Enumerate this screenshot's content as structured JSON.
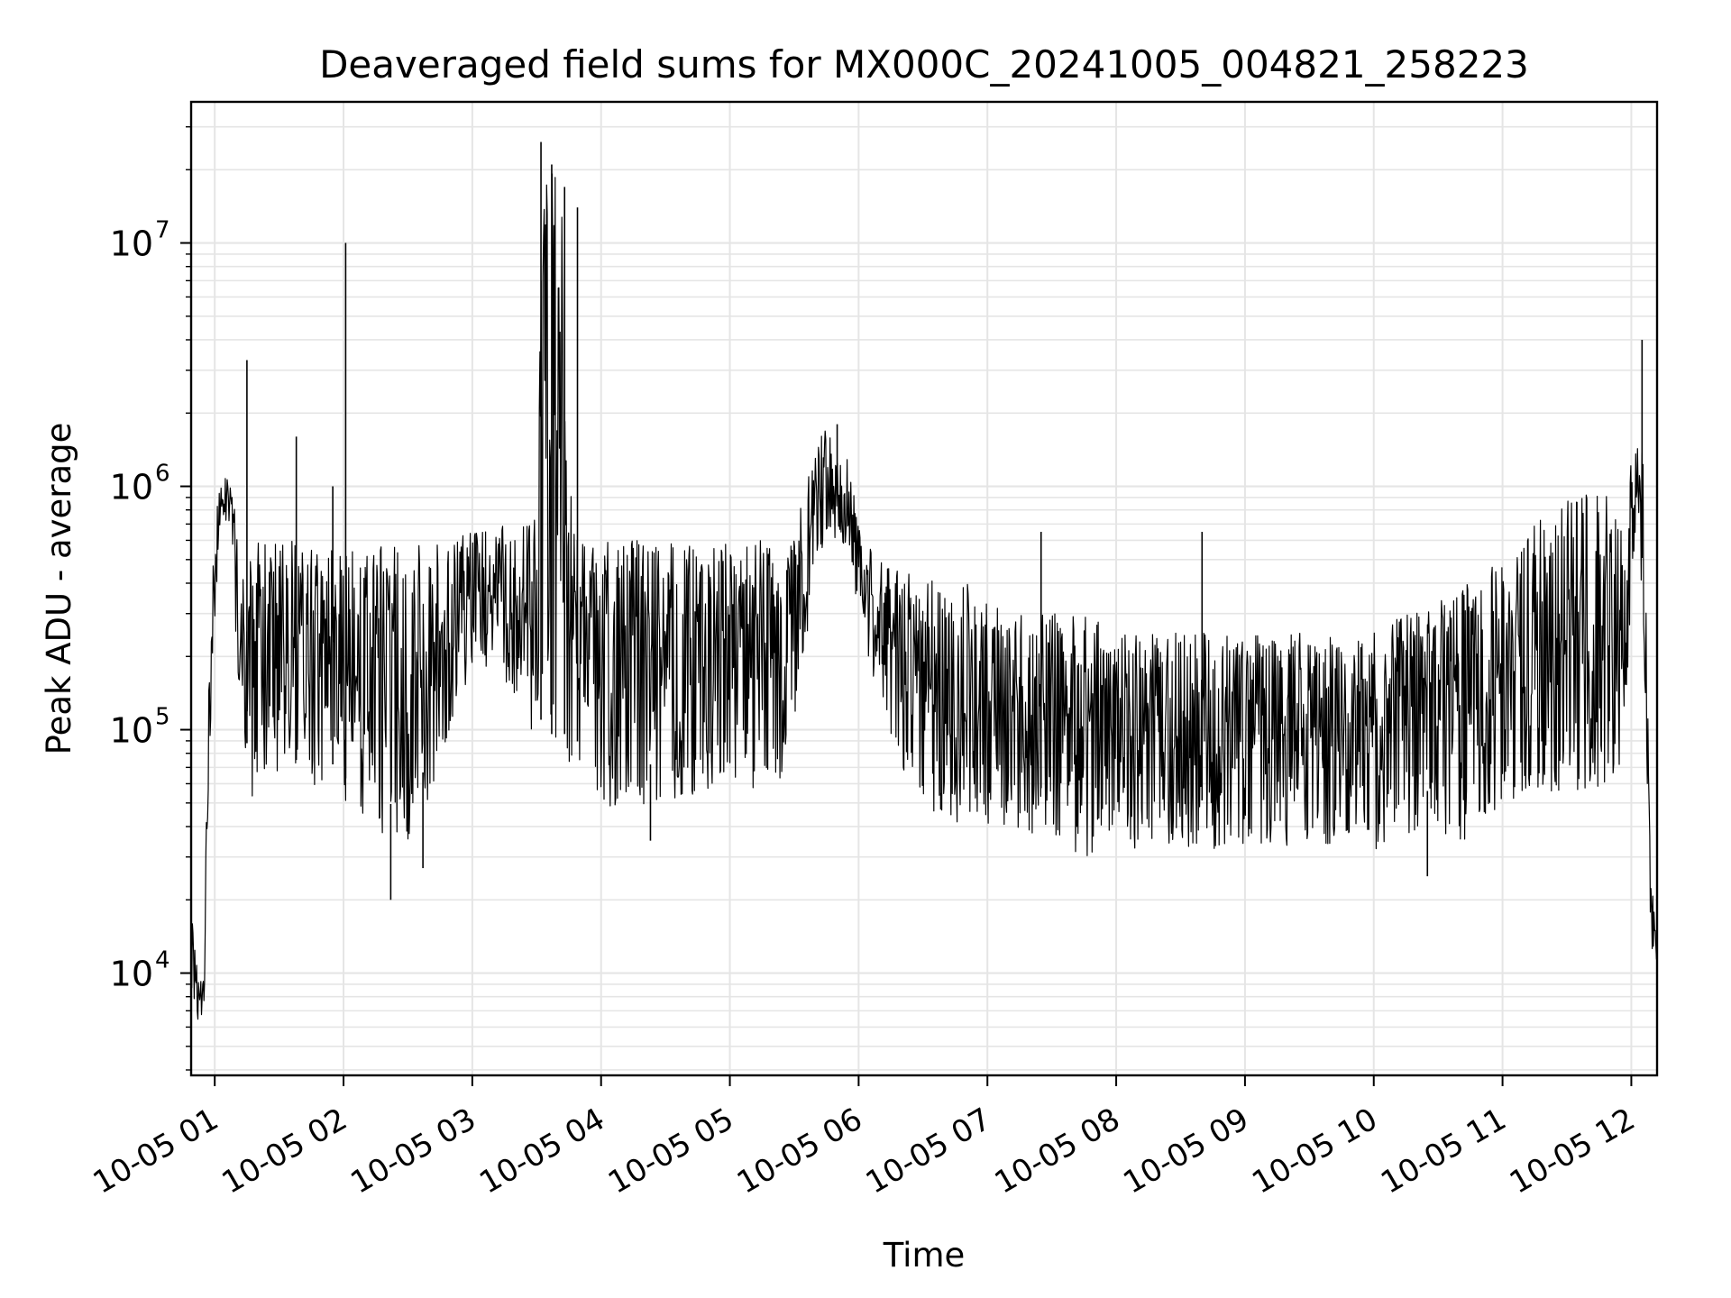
{
  "chart_data": {
    "type": "line",
    "title": "Deaveraged field sums for MX000C_20241005_004821_258223",
    "xlabel": "Time",
    "ylabel": "Peak ADU - average",
    "x_scale": "time",
    "y_scale": "log",
    "xlim": [
      "2024-10-05 00:49",
      "2024-10-05 12:12"
    ],
    "ylim": [
      3800,
      38000000
    ],
    "xtick_labels": [
      "10-05 01",
      "10-05 02",
      "10-05 03",
      "10-05 04",
      "10-05 05",
      "10-05 06",
      "10-05 07",
      "10-05 08",
      "10-05 09",
      "10-05 10",
      "10-05 11",
      "10-05 12"
    ],
    "ytick_labels": [
      {
        "base": "10",
        "exp": "4",
        "value": 10000
      },
      {
        "base": "10",
        "exp": "5",
        "value": 100000
      },
      {
        "base": "10",
        "exp": "6",
        "value": 1000000
      },
      {
        "base": "10",
        "exp": "7",
        "value": 10000000
      }
    ],
    "grid": true,
    "line_color": "#000000",
    "grid_color": "#e5e5e5",
    "series": [
      {
        "x": [
          "2024-10-05 00:49",
          "2024-10-05 00:51",
          "2024-10-05 00:53",
          "2024-10-05 00:55",
          "2024-10-05 00:57",
          "2024-10-05 00:59",
          "2024-10-05 01:02",
          "2024-10-05 01:05",
          "2024-10-05 01:08",
          "2024-10-05 01:10",
          "2024-10-05 01:13",
          "2024-10-05 01:15",
          "2024-10-05 01:20",
          "2024-10-05 01:25",
          "2024-10-05 01:30",
          "2024-10-05 01:35",
          "2024-10-05 01:40",
          "2024-10-05 01:45",
          "2024-10-05 01:50",
          "2024-10-05 01:55",
          "2024-10-05 02:00",
          "2024-10-05 02:10",
          "2024-10-05 02:20",
          "2024-10-05 02:30",
          "2024-10-05 02:40",
          "2024-10-05 02:50",
          "2024-10-05 03:00",
          "2024-10-05 03:10",
          "2024-10-05 03:20",
          "2024-10-05 03:30",
          "2024-10-05 03:33",
          "2024-10-05 03:36",
          "2024-10-05 03:39",
          "2024-10-05 03:42",
          "2024-10-05 03:45",
          "2024-10-05 03:50",
          "2024-10-05 04:00",
          "2024-10-05 04:15",
          "2024-10-05 04:30",
          "2024-10-05 04:45",
          "2024-10-05 05:00",
          "2024-10-05 05:15",
          "2024-10-05 05:30",
          "2024-10-05 05:35",
          "2024-10-05 05:40",
          "2024-10-05 05:45",
          "2024-10-05 05:50",
          "2024-10-05 05:55",
          "2024-10-05 06:00",
          "2024-10-05 06:10",
          "2024-10-05 06:20",
          "2024-10-05 06:30",
          "2024-10-05 06:40",
          "2024-10-05 06:50",
          "2024-10-05 07:00",
          "2024-10-05 07:15",
          "2024-10-05 07:30",
          "2024-10-05 07:45",
          "2024-10-05 08:00",
          "2024-10-05 08:15",
          "2024-10-05 08:30",
          "2024-10-05 08:45",
          "2024-10-05 09:00",
          "2024-10-05 09:15",
          "2024-10-05 09:30",
          "2024-10-05 09:45",
          "2024-10-05 10:00",
          "2024-10-05 10:15",
          "2024-10-05 10:30",
          "2024-10-05 10:45",
          "2024-10-05 11:00",
          "2024-10-05 11:15",
          "2024-10-05 11:30",
          "2024-10-05 11:45",
          "2024-10-05 11:55",
          "2024-10-05 12:00",
          "2024-10-05 12:03",
          "2024-10-05 12:06",
          "2024-10-05 12:09",
          "2024-10-05 12:12"
        ],
        "lower": [
          9000,
          6500,
          6000,
          7000,
          50000,
          150000,
          600000,
          700000,
          700000,
          200000,
          80000,
          55000,
          50000,
          50000,
          55000,
          50000,
          45000,
          50000,
          45000,
          45000,
          40000,
          35000,
          30000,
          35000,
          45000,
          100000,
          150000,
          200000,
          120000,
          90000,
          60000,
          60000,
          60000,
          60000,
          60000,
          55000,
          50000,
          45000,
          45000,
          50000,
          60000,
          55000,
          70000,
          200000,
          500000,
          600000,
          600000,
          500000,
          300000,
          120000,
          70000,
          50000,
          40000,
          40000,
          40000,
          38000,
          35000,
          30000,
          32000,
          32000,
          32000,
          32000,
          33000,
          33000,
          33000,
          33000,
          30000,
          35000,
          35000,
          35000,
          50000,
          55000,
          55000,
          55000,
          60000,
          300000,
          800000,
          200000,
          12000,
          10000
        ],
        "upper": [
          20000,
          12000,
          9000,
          10000,
          150000,
          500000,
          1000000,
          1100000,
          1000000,
          700000,
          500000,
          500000,
          600000,
          600000,
          600000,
          600000,
          600000,
          550000,
          550000,
          550000,
          550000,
          550000,
          600000,
          600000,
          600000,
          600000,
          650000,
          700000,
          700000,
          800000,
          25000000,
          20000000,
          20000000,
          15000000,
          1200000,
          700000,
          600000,
          600000,
          600000,
          600000,
          600000,
          600000,
          600000,
          1000000,
          1600000,
          1800000,
          1600000,
          1300000,
          700000,
          500000,
          450000,
          450000,
          400000,
          400000,
          350000,
          300000,
          300000,
          300000,
          250000,
          250000,
          250000,
          250000,
          250000,
          250000,
          250000,
          250000,
          250000,
          300000,
          350000,
          400000,
          500000,
          700000,
          900000,
          1000000,
          1000000,
          1500000,
          1600000,
          1300000,
          30000,
          12000
        ],
        "peaks": [
          {
            "x": "2024-10-05 01:15",
            "y": 3300000
          },
          {
            "x": "2024-10-05 01:38",
            "y": 1600000
          },
          {
            "x": "2024-10-05 01:55",
            "y": 1000000
          },
          {
            "x": "2024-10-05 02:01",
            "y": 10000000
          },
          {
            "x": "2024-10-05 02:22",
            "y": 20000
          },
          {
            "x": "2024-10-05 02:37",
            "y": 27000
          },
          {
            "x": "2024-10-05 03:32",
            "y": 26000000
          },
          {
            "x": "2024-10-05 03:37",
            "y": 21000000
          },
          {
            "x": "2024-10-05 03:43",
            "y": 17000000
          },
          {
            "x": "2024-10-05 03:49",
            "y": 14000000
          },
          {
            "x": "2024-10-05 04:23",
            "y": 35000
          },
          {
            "x": "2024-10-05 05:50",
            "y": 1800000
          },
          {
            "x": "2024-10-05 07:25",
            "y": 650000
          },
          {
            "x": "2024-10-05 08:40",
            "y": 650000
          },
          {
            "x": "2024-10-05 10:25",
            "y": 25000
          },
          {
            "x": "2024-10-05 12:05",
            "y": 4000000
          }
        ]
      }
    ]
  }
}
